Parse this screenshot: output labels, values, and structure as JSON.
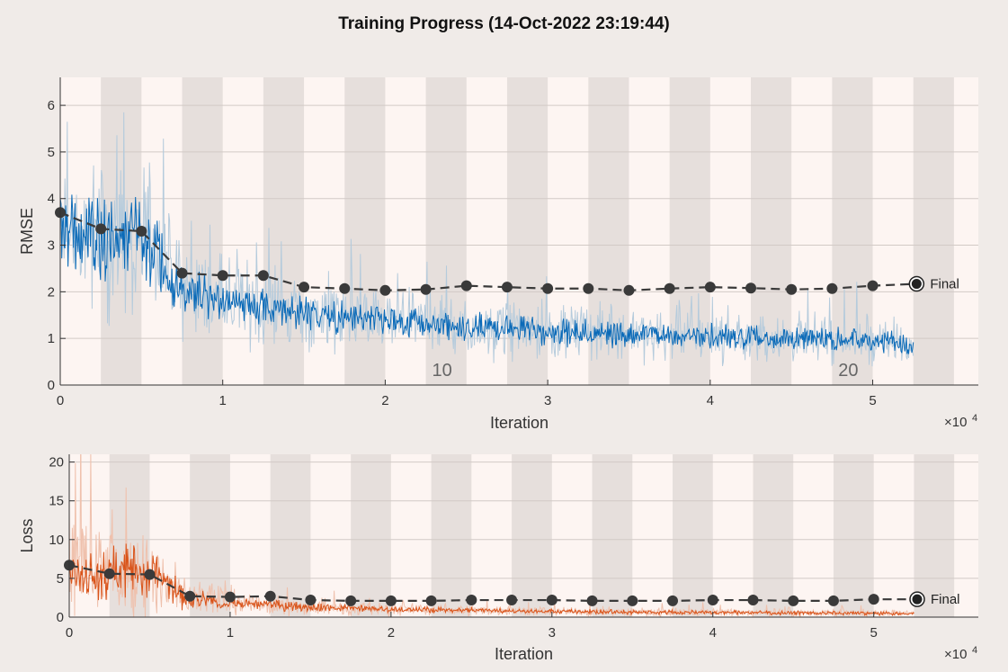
{
  "title": "Training Progress (14-Oct-2022 23:19:44)",
  "colors": {
    "background": "#f0ebe8",
    "band_light": "#fdf5f2",
    "band_dark": "#e6dfdc",
    "rmse_raw": "#b5cbdc",
    "rmse_smooth": "#0a6ab8",
    "loss_raw": "#efc1ad",
    "loss_smooth": "#d95319",
    "validation": "#3a3a3a"
  },
  "chart_data": [
    {
      "type": "line",
      "name": "rmse-chart",
      "ylabel": "RMSE",
      "xlabel": "Iteration",
      "x_multiplier": "×10",
      "x_multiplier_exp": "4",
      "xlim": [
        0,
        56500
      ],
      "ylim": [
        0,
        6.6
      ],
      "xticks": [
        0,
        10000,
        20000,
        30000,
        40000,
        50000
      ],
      "xtick_labels": [
        "0",
        "1",
        "2",
        "3",
        "4",
        "5"
      ],
      "yticks": [
        0,
        1,
        2,
        3,
        4,
        5,
        6
      ],
      "ytick_labels": [
        "0",
        "1",
        "2",
        "3",
        "4",
        "5",
        "6"
      ],
      "epoch_bands": {
        "start": 0,
        "width": 2500,
        "count": 23
      },
      "epoch_labels": [
        {
          "x": 23500,
          "text": "10"
        },
        {
          "x": 48500,
          "text": "20"
        }
      ],
      "training_smoothed": {
        "x": [
          0,
          2000,
          5000,
          6000,
          7000,
          10000,
          15000,
          20000,
          25000,
          30000,
          35000,
          40000,
          45000,
          50000,
          52500
        ],
        "y": [
          3.3,
          3.2,
          3.1,
          3.0,
          2.1,
          1.8,
          1.55,
          1.35,
          1.25,
          1.15,
          1.1,
          1.05,
          1.0,
          0.95,
          0.9
        ]
      },
      "training_spread": {
        "x": [
          0,
          5000,
          6000,
          7000,
          10000,
          15000,
          20000,
          30000,
          40000,
          50000,
          52500
        ],
        "y": [
          1.3,
          1.3,
          1.1,
          0.8,
          0.65,
          0.55,
          0.5,
          0.45,
          0.4,
          0.38,
          0.35
        ]
      },
      "validation": {
        "x": [
          0,
          2500,
          5000,
          7500,
          10000,
          12500,
          15000,
          17500,
          20000,
          22500,
          25000,
          27500,
          30000,
          32500,
          35000,
          37500,
          40000,
          42500,
          45000,
          47500,
          50000
        ],
        "y": [
          3.7,
          3.35,
          3.3,
          2.4,
          2.35,
          2.35,
          2.1,
          2.07,
          2.03,
          2.05,
          2.13,
          2.1,
          2.07,
          2.07,
          2.03,
          2.07,
          2.1,
          2.08,
          2.05,
          2.07,
          2.13
        ]
      },
      "final": {
        "x": 52700,
        "y": 2.17,
        "label": "Final"
      }
    },
    {
      "type": "line",
      "name": "loss-chart",
      "ylabel": "Loss",
      "xlabel": "Iteration",
      "x_multiplier": "×10",
      "x_multiplier_exp": "4",
      "xlim": [
        0,
        56500
      ],
      "ylim": [
        0,
        21
      ],
      "xticks": [
        0,
        10000,
        20000,
        30000,
        40000,
        50000
      ],
      "xtick_labels": [
        "0",
        "1",
        "2",
        "3",
        "4",
        "5"
      ],
      "yticks": [
        0,
        5,
        10,
        15,
        20
      ],
      "ytick_labels": [
        "0",
        "5",
        "10",
        "15",
        "20"
      ],
      "epoch_bands": {
        "start": 0,
        "width": 2500,
        "count": 23
      },
      "epoch_labels": [],
      "training_smoothed": {
        "x": [
          0,
          2000,
          5000,
          6000,
          7000,
          10000,
          15000,
          20000,
          25000,
          30000,
          35000,
          40000,
          45000,
          50000,
          52500
        ],
        "y": [
          6.5,
          6.0,
          5.5,
          4.5,
          2.5,
          1.8,
          1.3,
          1.0,
          0.9,
          0.75,
          0.65,
          0.6,
          0.55,
          0.5,
          0.45
        ]
      },
      "training_spread": {
        "x": [
          0,
          5000,
          6000,
          7000,
          10000,
          15000,
          20000,
          30000,
          40000,
          50000,
          52500
        ],
        "y": [
          5.0,
          5.0,
          3.5,
          2.2,
          1.2,
          0.8,
          0.6,
          0.45,
          0.4,
          0.35,
          0.3
        ]
      },
      "validation": {
        "x": [
          0,
          2500,
          5000,
          7500,
          10000,
          12500,
          15000,
          17500,
          20000,
          22500,
          25000,
          27500,
          30000,
          32500,
          35000,
          37500,
          40000,
          42500,
          45000,
          47500,
          50000
        ],
        "y": [
          6.7,
          5.6,
          5.5,
          2.7,
          2.6,
          2.7,
          2.2,
          2.1,
          2.1,
          2.1,
          2.2,
          2.2,
          2.2,
          2.1,
          2.1,
          2.1,
          2.2,
          2.2,
          2.1,
          2.1,
          2.3
        ]
      },
      "final": {
        "x": 52700,
        "y": 2.3,
        "label": "Final"
      }
    }
  ]
}
